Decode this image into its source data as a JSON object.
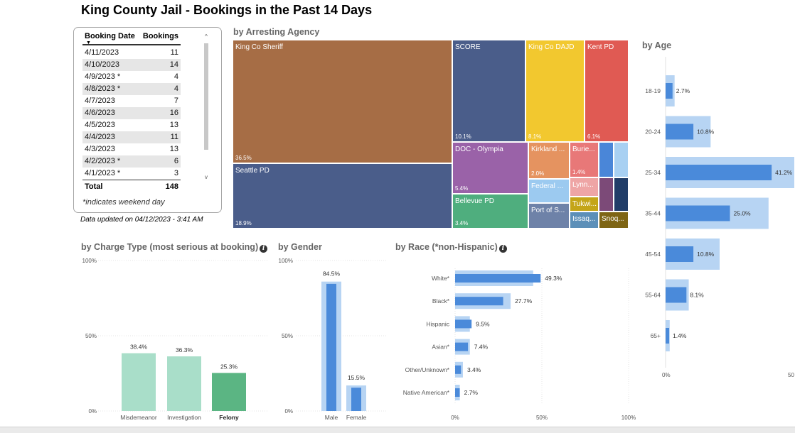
{
  "page": {
    "title": "King County Jail - Bookings in the Past 14 Days",
    "updated": "Data updated on 04/12/2023 - 3:41 AM",
    "section_agency": "by Arresting Agency",
    "section_age": "by Age",
    "section_charge": "by Charge Type (most serious at booking)",
    "section_gender": "by Gender",
    "section_race": "by Race (*non-Hispanic)",
    "info_glyph": "i"
  },
  "table": {
    "header_date": "Booking Date",
    "header_bookings": "Bookings",
    "sort_glyph": "▼",
    "scroll_up_glyph": "^",
    "scroll_down_glyph": "v",
    "rows": [
      {
        "date": "4/11/2023",
        "count": "11"
      },
      {
        "date": "4/10/2023",
        "count": "14"
      },
      {
        "date": "4/9/2023 *",
        "count": "4"
      },
      {
        "date": "4/8/2023 *",
        "count": "4"
      },
      {
        "date": "4/7/2023",
        "count": "7"
      },
      {
        "date": "4/6/2023",
        "count": "16"
      },
      {
        "date": "4/5/2023",
        "count": "13"
      },
      {
        "date": "4/4/2023",
        "count": "11"
      },
      {
        "date": "4/3/2023",
        "count": "13"
      },
      {
        "date": "4/2/2023 *",
        "count": "6"
      },
      {
        "date": "4/1/2023 *",
        "count": "3"
      }
    ],
    "total_label": "Total",
    "total_value": "148",
    "note": "*indicates weekend day"
  },
  "chart_data": [
    {
      "type": "treemap",
      "title": "by Arresting Agency",
      "items": [
        {
          "label": "King Co Sheriff",
          "pct": "36.5%",
          "color": "#A66D45"
        },
        {
          "label": "Seattle PD",
          "pct": "18.9%",
          "color": "#4A5D8A"
        },
        {
          "label": "SCORE",
          "pct": "10.1%",
          "color": "#4A5D8A"
        },
        {
          "label": "King Co DAJD",
          "pct": "8.1%",
          "color": "#F2C82F"
        },
        {
          "label": "Kent PD",
          "pct": "6.1%",
          "color": "#E05A53"
        },
        {
          "label": "DOC - Olympia",
          "pct": "5.4%",
          "color": "#9A62A8"
        },
        {
          "label": "Bellevue PD",
          "pct": "3.4%",
          "color": "#4FAE7E"
        },
        {
          "label": "Kirkland ...",
          "pct": "2.0%",
          "color": "#E59360"
        },
        {
          "label": "Burie...",
          "pct": "1.4%",
          "color": "#E87878"
        },
        {
          "label": "",
          "pct": "",
          "color": "#4A86D8"
        },
        {
          "label": "",
          "pct": "",
          "color": "#A8D0F2"
        },
        {
          "label": "Federal ...",
          "pct": "",
          "color": "#9CCAF0"
        },
        {
          "label": "Lynn...",
          "pct": "",
          "color": "#EEA5A5"
        },
        {
          "label": "",
          "pct": "",
          "color": "#7C4A78"
        },
        {
          "label": "",
          "pct": "",
          "color": "#213D68"
        },
        {
          "label": "Port of S...",
          "pct": "",
          "color": "#6E82A8"
        },
        {
          "label": "Tukwi...",
          "pct": "",
          "color": "#C4A518"
        },
        {
          "label": "Issaq...",
          "pct": "",
          "color": "#5C8FB8"
        },
        {
          "label": "Snoq...",
          "pct": "",
          "color": "#7E6514"
        }
      ]
    },
    {
      "type": "bar",
      "orientation": "horizontal",
      "title": "by Age",
      "categories": [
        "18-19",
        "20-24",
        "25-34",
        "35-44",
        "45-54",
        "55-64",
        "65+"
      ],
      "values": [
        2.7,
        10.8,
        41.2,
        25.0,
        10.8,
        8.1,
        1.4
      ],
      "labels": [
        "2.7%",
        "10.8%",
        "41.2%",
        "25.0%",
        "10.8%",
        "8.1%",
        "1.4%"
      ],
      "background_values": [
        3.5,
        17.5,
        50.0,
        40.0,
        21.0,
        9.0,
        1.6
      ],
      "xlim": [
        0,
        50
      ],
      "xticks": [
        "0%",
        "50"
      ],
      "bar_color": "#4A8ADA",
      "background_color": "#B7D4F3"
    },
    {
      "type": "bar",
      "title": "by Charge Type (most serious at booking)",
      "categories": [
        "Misdemeanor",
        "Investigation",
        "Felony"
      ],
      "values": [
        38.4,
        36.3,
        25.3
      ],
      "labels": [
        "38.4%",
        "36.3%",
        "25.3%"
      ],
      "colors": [
        "#A9DEC9",
        "#A9DEC9",
        "#5BB583"
      ],
      "highlight": "Felony",
      "ylim": [
        0,
        100
      ],
      "yticks": [
        "0%",
        "50%",
        "100%"
      ]
    },
    {
      "type": "bar",
      "title": "by Gender",
      "categories": [
        "Male",
        "Female"
      ],
      "values": [
        84.5,
        15.5
      ],
      "labels": [
        "84.5%",
        "15.5%"
      ],
      "background_values": [
        86.0,
        17.0
      ],
      "ylim": [
        0,
        100
      ],
      "yticks": [
        "0%",
        "50%",
        "100%"
      ],
      "bar_color": "#4A8ADA",
      "background_color": "#B7D4F3"
    },
    {
      "type": "bar",
      "orientation": "horizontal",
      "title": "by Race (*non-Hispanic)",
      "categories": [
        "White*",
        "Black*",
        "Hispanic",
        "Asian*",
        "Other/Unknown*",
        "Native American*"
      ],
      "values": [
        49.3,
        27.7,
        9.5,
        7.4,
        3.4,
        2.7
      ],
      "labels": [
        "49.3%",
        "27.7%",
        "9.5%",
        "7.4%",
        "3.4%",
        "2.7%"
      ],
      "background_values": [
        45.0,
        32.0,
        8.5,
        8.5,
        4.5,
        2.7
      ],
      "xlim": [
        0,
        100
      ],
      "xticks": [
        "0%",
        "50%",
        "100%"
      ],
      "bar_color": "#4A8ADA",
      "background_color": "#B7D4F3"
    }
  ]
}
